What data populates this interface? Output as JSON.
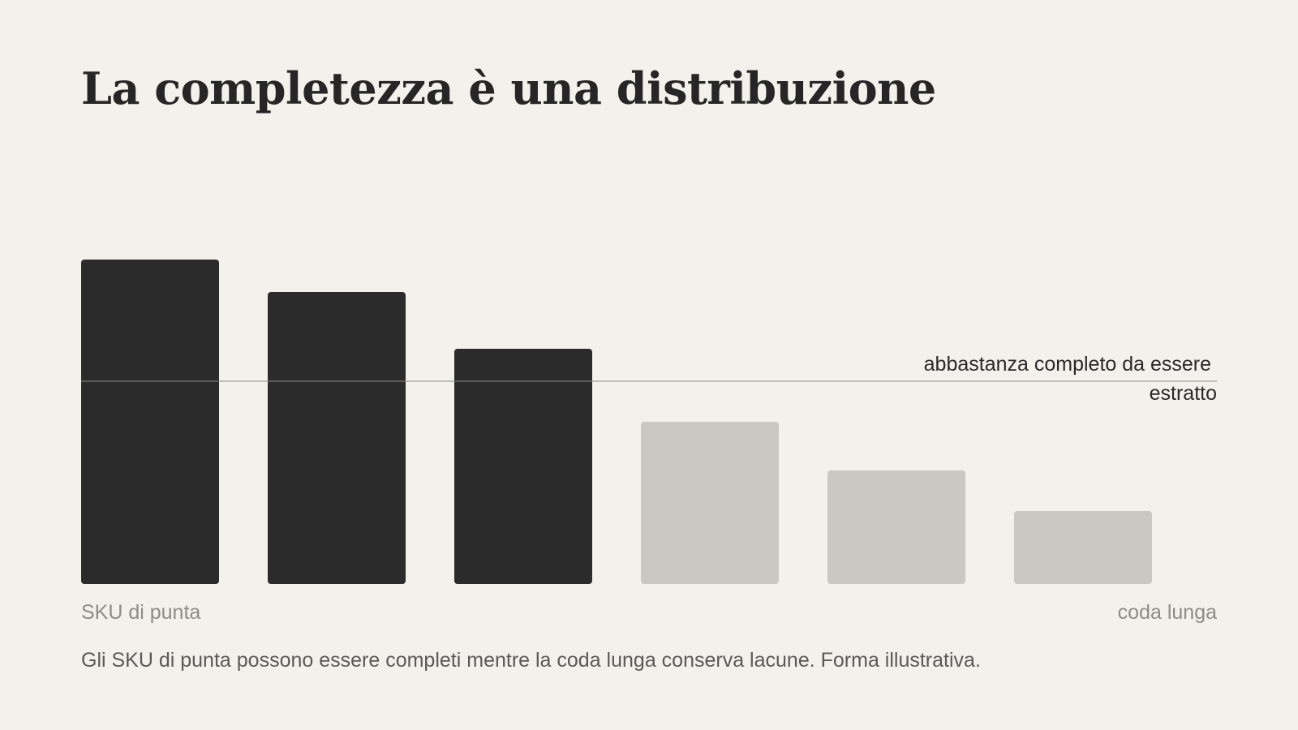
{
  "title": "La completezza è una distribuzione",
  "caption": "Gli SKU di punta possono essere completi mentre la coda lunga conserva lacune. Forma illustrativa.",
  "colors": {
    "background": "#f2f1ec",
    "above_threshold": "#2b2b2b",
    "below_threshold": "#c9c8c3",
    "threshold_line": "#8a8a86"
  },
  "chart_data": {
    "type": "bar",
    "values": [
      100,
      90,
      72.5,
      50,
      35,
      22.5
    ],
    "ylim": [
      0,
      100
    ],
    "threshold": {
      "value": 62.5,
      "label_lines": [
        "abbastanza completo da essere",
        "estratto"
      ]
    },
    "x_start_label": "SKU di punta",
    "x_end_label": "coda lunga",
    "grid": false,
    "legend": "none"
  }
}
